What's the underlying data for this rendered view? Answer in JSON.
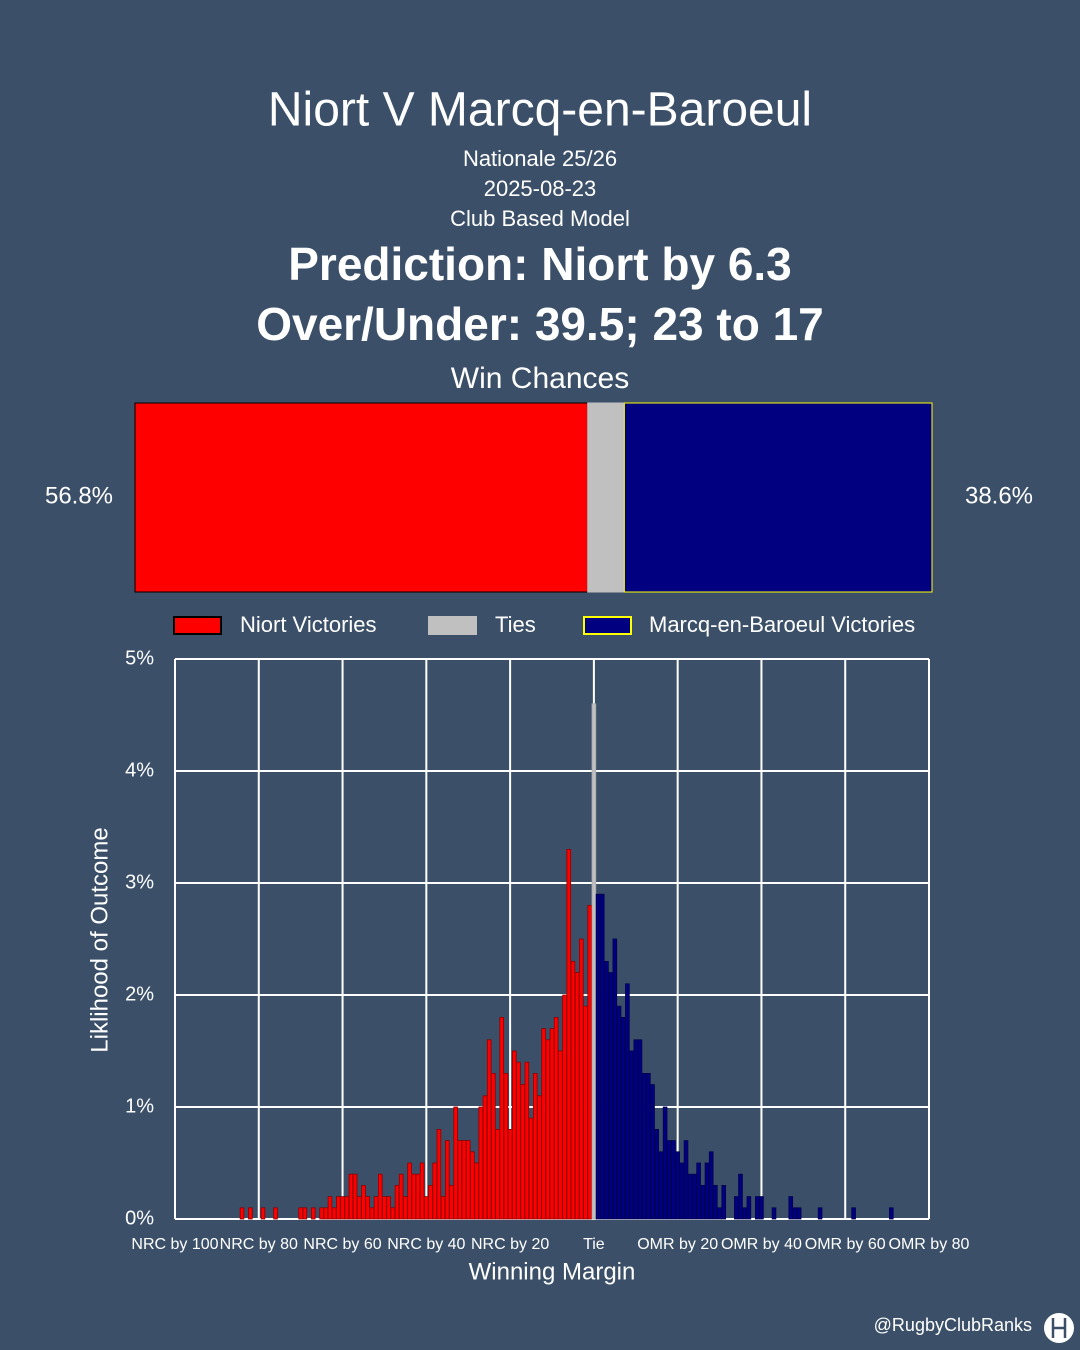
{
  "header": {
    "title": "Niort V Marcq-en-Baroeul",
    "subtitles": [
      "Nationale 25/26",
      "2025-08-23",
      "Club Based Model"
    ],
    "prediction": "Prediction: Niort by 6.3",
    "over_under": "Over/Under: 39.5; 23 to 17"
  },
  "chart_data": [
    {
      "type": "stacked_hbar",
      "title": "Win Chances",
      "xlim": [
        0,
        100
      ],
      "series": [
        {
          "name": "Niort Victories",
          "color": "#ff0000",
          "edgecolor": "#000000",
          "values": [
            56.8
          ],
          "value_labels": [
            "56.8%"
          ]
        },
        {
          "name": "Ties",
          "color": "#c0c0c0",
          "edgecolor": "#c0c0c0",
          "values": [
            4.6
          ]
        },
        {
          "name": "Marcq-en-Baroeul Victories",
          "color": "#000080",
          "edgecolor": "#ffff00",
          "values": [
            38.6
          ],
          "value_labels": [
            "38.6%"
          ]
        }
      ]
    },
    {
      "type": "histogram",
      "x_label": "Winning Margin",
      "y_label": "Liklihood of Outcome",
      "grid": true,
      "xlim": [
        -100,
        80
      ],
      "ylim": [
        0,
        5
      ],
      "xticks": [
        {
          "value": -100,
          "label": "NRC by 100"
        },
        {
          "value": -80,
          "label": "NRC by 80"
        },
        {
          "value": -60,
          "label": "NRC by 60"
        },
        {
          "value": -40,
          "label": "NRC by 40"
        },
        {
          "value": -20,
          "label": "NRC by 20"
        },
        {
          "value": 0,
          "label": "Tie"
        },
        {
          "value": 20,
          "label": "OMR by 20"
        },
        {
          "value": 40,
          "label": "OMR by 40"
        },
        {
          "value": 60,
          "label": "OMR by 60"
        },
        {
          "value": 80,
          "label": "OMR by 80"
        }
      ],
      "yticks": [
        {
          "value": 0,
          "label": "0%"
        },
        {
          "value": 1,
          "label": "1%"
        },
        {
          "value": 2,
          "label": "2%"
        },
        {
          "value": 3,
          "label": "3%"
        },
        {
          "value": 4,
          "label": "4%"
        },
        {
          "value": 5,
          "label": "5%"
        }
      ],
      "series": [
        {
          "color": "#ff0000",
          "edgecolor": "#8b0000",
          "x": [
            -84,
            -82,
            -79,
            -76,
            -70,
            -69,
            -67,
            -65,
            -64,
            -63,
            -62,
            -61,
            -60,
            -59,
            -58,
            -57,
            -56,
            -55,
            -54,
            -53,
            -52,
            -51,
            -50,
            -49,
            -48,
            -47,
            -46,
            -45,
            -44,
            -43,
            -42,
            -41,
            -40,
            -39,
            -38,
            -37,
            -36,
            -35,
            -34,
            -33,
            -32,
            -31,
            -30,
            -29,
            -28,
            -27,
            -26,
            -25,
            -24,
            -23,
            -22,
            -21,
            -20,
            -19,
            -18,
            -17,
            -16,
            -15,
            -14,
            -13,
            -12,
            -11,
            -10,
            -9,
            -8,
            -7,
            -6,
            -5,
            -4,
            -3,
            -2,
            -1
          ],
          "values": [
            0.1,
            0.1,
            0.1,
            0.1,
            0.1,
            0.1,
            0.1,
            0.1,
            0.1,
            0.2,
            0.1,
            0.2,
            0.2,
            0.2,
            0.4,
            0.4,
            0.2,
            0.3,
            0.2,
            0.1,
            0.2,
            0.4,
            0.2,
            0.2,
            0.1,
            0.3,
            0.4,
            0.2,
            0.5,
            0.4,
            0.4,
            0.5,
            0.2,
            0.3,
            0.5,
            0.8,
            0.2,
            0.7,
            0.3,
            1.0,
            0.7,
            0.7,
            0.7,
            0.6,
            0.5,
            1.0,
            1.1,
            1.6,
            1.3,
            0.8,
            1.8,
            1.3,
            0.8,
            1.5,
            1.4,
            1.2,
            1.4,
            0.9,
            1.3,
            1.1,
            1.7,
            1.6,
            1.7,
            1.8,
            1.5,
            2.0,
            3.3,
            2.3,
            2.2,
            2.5,
            1.9,
            2.8
          ]
        },
        {
          "color": "#c0c0c0",
          "edgecolor": "#a9a9a9",
          "x": [
            0
          ],
          "values": [
            4.6
          ]
        },
        {
          "color": "#000080",
          "edgecolor": "#00004a",
          "x": [
            1,
            2,
            3,
            4,
            5,
            6,
            7,
            8,
            9,
            10,
            11,
            12,
            13,
            14,
            15,
            16,
            17,
            18,
            19,
            20,
            21,
            22,
            23,
            24,
            25,
            26,
            27,
            28,
            29,
            30,
            31,
            34,
            35,
            36,
            37,
            39,
            40,
            43,
            47,
            48,
            49,
            54,
            62,
            71
          ],
          "values": [
            2.9,
            2.9,
            2.3,
            2.2,
            2.5,
            1.9,
            1.8,
            2.1,
            1.5,
            1.6,
            1.6,
            1.3,
            1.3,
            1.2,
            0.8,
            0.6,
            1.0,
            0.7,
            0.7,
            0.6,
            0.5,
            0.7,
            0.4,
            0.4,
            0.5,
            0.3,
            0.5,
            0.6,
            0.3,
            0.1,
            0.3,
            0.2,
            0.4,
            0.1,
            0.2,
            0.2,
            0.2,
            0.1,
            0.2,
            0.1,
            0.1,
            0.1,
            0.1,
            0.1
          ]
        }
      ]
    }
  ],
  "footer": {
    "handle": "@RugbyClubRanks"
  }
}
